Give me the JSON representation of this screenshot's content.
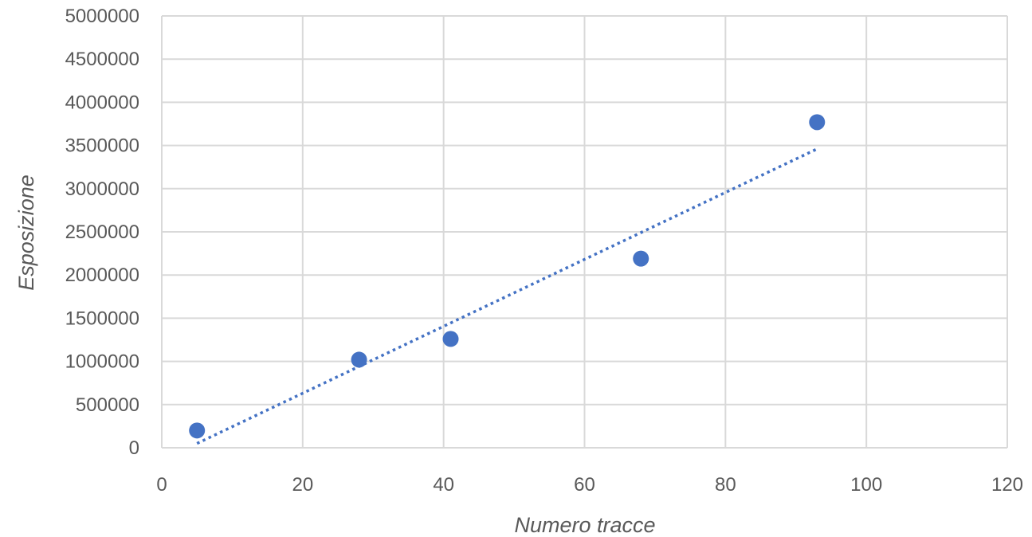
{
  "chart_data": {
    "type": "scatter",
    "title": "",
    "xlabel": "Numero tracce",
    "ylabel": "Esposizione",
    "xlim": [
      0,
      120
    ],
    "ylim": [
      0,
      5000000
    ],
    "x_ticks": [
      "0",
      "20",
      "40",
      "60",
      "80",
      "100",
      "120"
    ],
    "y_ticks": [
      "0",
      "500000",
      "1000000",
      "1500000",
      "2000000",
      "2500000",
      "3000000",
      "3500000",
      "4000000",
      "4500000",
      "5000000"
    ],
    "grid": true,
    "legend": "none",
    "series": [
      {
        "points": [
          {
            "x": 5,
            "y": 200000
          },
          {
            "x": 28,
            "y": 1020000
          },
          {
            "x": 41,
            "y": 1260000
          },
          {
            "x": 68,
            "y": 2190000
          },
          {
            "x": 93,
            "y": 3770000
          }
        ],
        "color": "#4472c4"
      }
    ],
    "trendline": {
      "type": "linear",
      "style": "dotted",
      "color": "#4472c4",
      "x_range": [
        5,
        93
      ],
      "y_range": [
        50000,
        3460000
      ]
    }
  }
}
